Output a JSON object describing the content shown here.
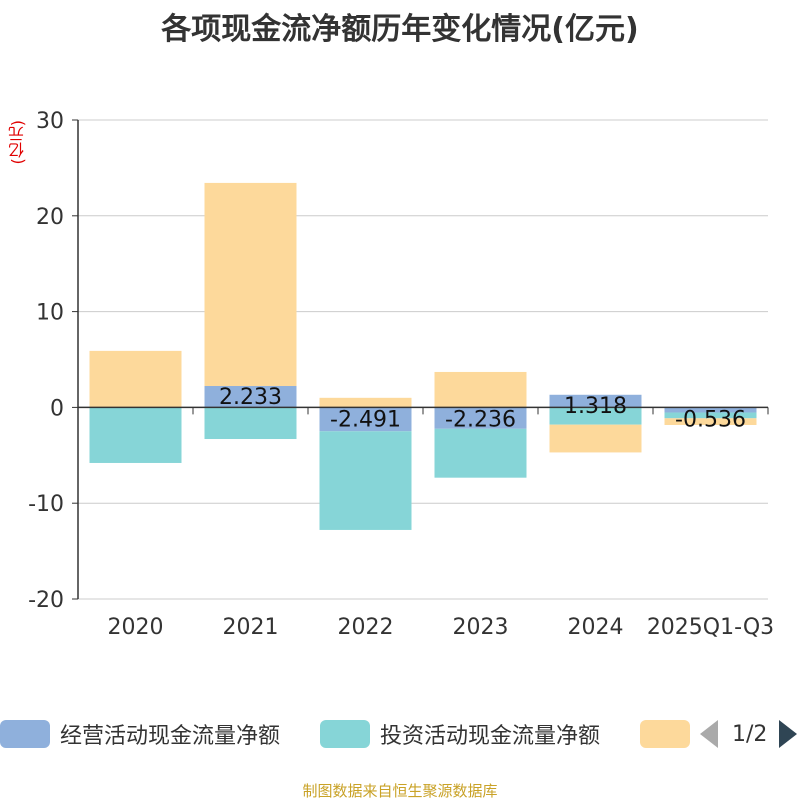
{
  "chart_data": {
    "type": "bar",
    "stacked": true,
    "title": "各项现金流净额历年变化情况(亿元)",
    "ylabel": "(亿元)",
    "xlabel": "",
    "ylim": [
      -20,
      30
    ],
    "yticks": [
      30,
      20,
      10,
      0,
      -10,
      -20
    ],
    "grid": true,
    "categories": [
      "2020",
      "2021",
      "2022",
      "2023",
      "2024",
      "2025Q1-Q3"
    ],
    "series": [
      {
        "name": "经营活动现金流量净额",
        "color": "#8fb0dc",
        "values": [
          0.0,
          2.233,
          -2.491,
          -2.236,
          1.318,
          -0.536
        ],
        "labels": [
          "",
          "2.233",
          "-2.491",
          "-2.236",
          "1.318",
          "-0.536"
        ]
      },
      {
        "name": "投资活动现金流量净额",
        "color": "#86d5d7",
        "values": [
          -5.8,
          -3.3,
          -10.3,
          -5.1,
          -1.8,
          -0.6
        ]
      },
      {
        "name": "",
        "color": "#fdd99b",
        "values": [
          5.9,
          21.2,
          1.0,
          3.7,
          -2.9,
          -0.7
        ]
      }
    ]
  },
  "legend": {
    "items": [
      {
        "label": "经营活动现金流量净额",
        "color": "#8fb0dc"
      },
      {
        "label": "投资活动现金流量净额",
        "color": "#86d5d7"
      },
      {
        "label": "",
        "color": "#fdd99b"
      }
    ],
    "page": "1/2"
  },
  "source": "制图数据来自恒生聚源数据库"
}
